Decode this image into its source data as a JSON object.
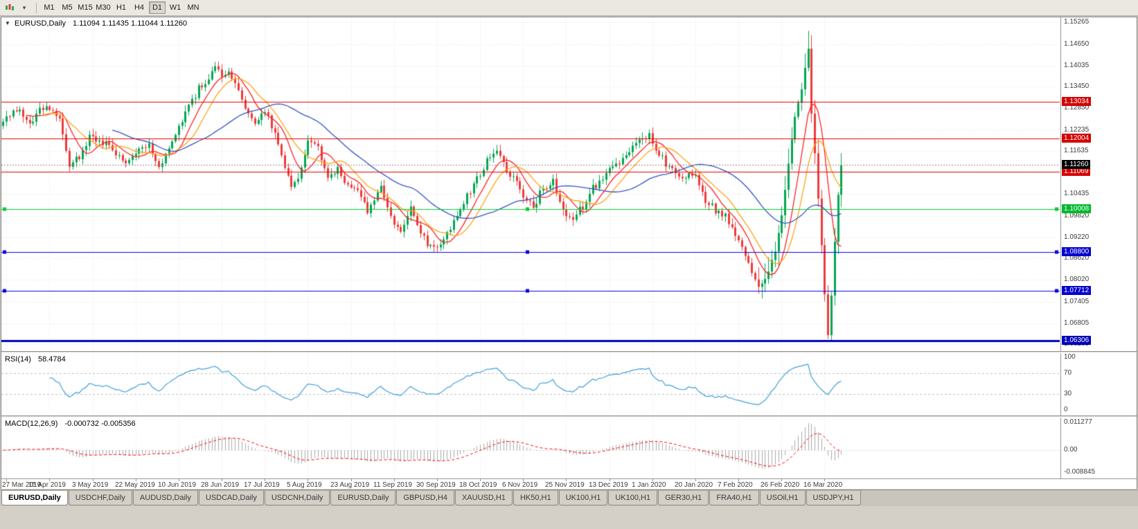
{
  "toolbar": {
    "timeframes": [
      "M1",
      "M5",
      "M15",
      "M30",
      "H1",
      "H4",
      "D1",
      "W1",
      "MN"
    ],
    "active_timeframe": "D1"
  },
  "chart_data": {
    "type": "candlestick",
    "symbol_title": "EURUSD,Daily",
    "ohlc_readout": "1.11094 1.11435 1.11044 1.11260",
    "ohlc": {
      "open": "1.11094",
      "high": "1.11435",
      "low": "1.11044",
      "close": "1.11260"
    },
    "x_labels": [
      "27 Mar 2019",
      "15 Apr 2019",
      "3 May 2019",
      "22 May 2019",
      "10 Jun 2019",
      "28 Jun 2019",
      "17 Jul 2019",
      "5 Aug 2019",
      "23 Aug 2019",
      "11 Sep 2019",
      "30 Sep 2019",
      "18 Oct 2019",
      "6 Nov 2019",
      "25 Nov 2019",
      "13 Dec 2019",
      "1 Jan 2020",
      "20 Jan 2020",
      "7 Feb 2020",
      "26 Feb 2020",
      "16 Mar 2020"
    ],
    "bars_total": 254,
    "label_start_index": 1,
    "label_step": 13,
    "right_margin_fraction": 0.205,
    "price_range": {
      "min": 1.0602,
      "max": 1.154
    },
    "price_axis_ticks": [
      "1.15265",
      "1.14650",
      "1.14035",
      "1.13450",
      "1.12850",
      "1.12235",
      "1.11635",
      "1.11020",
      "1.10435",
      "1.09820",
      "1.09220",
      "1.08620",
      "1.08020",
      "1.07405",
      "1.06805",
      "1.06205"
    ],
    "close_keypoints": [
      [
        0,
        1.1255
      ],
      [
        4,
        1.1285
      ],
      [
        8,
        1.124
      ],
      [
        13,
        1.13
      ],
      [
        17,
        1.1255
      ],
      [
        20,
        1.112
      ],
      [
        23,
        1.115
      ],
      [
        26,
        1.12
      ],
      [
        30,
        1.119
      ],
      [
        34,
        1.116
      ],
      [
        38,
        1.113
      ],
      [
        40,
        1.1155
      ],
      [
        44,
        1.118
      ],
      [
        47,
        1.112
      ],
      [
        50,
        1.117
      ],
      [
        53,
        1.123
      ],
      [
        56,
        1.129
      ],
      [
        59,
        1.134
      ],
      [
        62,
        1.137
      ],
      [
        64,
        1.14
      ],
      [
        66,
        1.1375
      ],
      [
        68,
        1.139
      ],
      [
        70,
        1.136
      ],
      [
        73,
        1.128
      ],
      [
        76,
        1.125
      ],
      [
        79,
        1.127
      ],
      [
        82,
        1.122
      ],
      [
        85,
        1.112
      ],
      [
        87,
        1.1065
      ],
      [
        90,
        1.111
      ],
      [
        92,
        1.1195
      ],
      [
        95,
        1.117
      ],
      [
        98,
        1.109
      ],
      [
        101,
        1.112
      ],
      [
        103,
        1.108
      ],
      [
        105,
        1.106
      ],
      [
        108,
        1.104
      ],
      [
        110,
        1.099
      ],
      [
        112,
        1.103
      ],
      [
        114,
        1.107
      ],
      [
        116,
        1.1
      ],
      [
        118,
        1.096
      ],
      [
        120,
        1.093
      ],
      [
        123,
        1.1005
      ],
      [
        125,
        1.095
      ],
      [
        128,
        1.09
      ],
      [
        131,
        1.089
      ],
      [
        134,
        1.093
      ],
      [
        137,
        1.098
      ],
      [
        140,
        1.104
      ],
      [
        142,
        1.107
      ],
      [
        144,
        1.11
      ],
      [
        147,
        1.115
      ],
      [
        150,
        1.116
      ],
      [
        152,
        1.111
      ],
      [
        155,
        1.107
      ],
      [
        158,
        1.103
      ],
      [
        160,
        1.101
      ],
      [
        163,
        1.106
      ],
      [
        166,
        1.108
      ],
      [
        168,
        1.102
      ],
      [
        170,
        1.099
      ],
      [
        172,
        1.098
      ],
      [
        175,
        1.101
      ],
      [
        178,
        1.106
      ],
      [
        180,
        1.108
      ],
      [
        183,
        1.111
      ],
      [
        186,
        1.113
      ],
      [
        189,
        1.117
      ],
      [
        192,
        1.119
      ],
      [
        195,
        1.121
      ],
      [
        197,
        1.117
      ],
      [
        200,
        1.113
      ],
      [
        203,
        1.11
      ],
      [
        206,
        1.109
      ],
      [
        209,
        1.1095
      ],
      [
        212,
        1.102
      ],
      [
        215,
        1.1
      ],
      [
        218,
        1.098
      ],
      [
        221,
        1.093
      ],
      [
        224,
        1.087
      ],
      [
        227,
        1.08
      ],
      [
        229,
        1.0785
      ],
      [
        231,
        1.083
      ],
      [
        233,
        1.088
      ],
      [
        235,
        1.0985
      ],
      [
        237,
        1.113
      ],
      [
        239,
        1.126
      ],
      [
        241,
        1.134
      ],
      [
        242,
        1.14
      ],
      [
        243,
        1.145
      ],
      [
        244,
        1.127
      ],
      [
        245,
        1.116
      ],
      [
        246,
        1.103
      ],
      [
        247,
        1.09
      ],
      [
        248,
        1.076
      ],
      [
        249,
        1.0645
      ],
      [
        250,
        1.076
      ],
      [
        251,
        1.091
      ],
      [
        252,
        1.104
      ],
      [
        253,
        1.1126
      ]
    ],
    "noise_amplitude": 0.0011,
    "wick_overrides": [
      [
        64,
        "high",
        1.1415
      ],
      [
        243,
        "high",
        1.1502
      ],
      [
        249,
        "low",
        1.0636
      ]
    ],
    "candle_up_color": "#00a651",
    "candle_down_color": "#ef3a3a",
    "moving_averages": [
      {
        "period": 8,
        "color": "#ff2020"
      },
      {
        "period": 13,
        "color": "#ffa216"
      },
      {
        "period": 34,
        "color": "#3353c5"
      }
    ],
    "levels": [
      {
        "price": 1.13034,
        "label": "1.13034",
        "color": "#e30000",
        "badge_bg": "#d40000",
        "width": 1
      },
      {
        "price": 1.12004,
        "label": "1.12004",
        "color": "#e30000",
        "badge_bg": "#d40000",
        "width": 1
      },
      {
        "price": 1.11069,
        "label": "1.11069",
        "color": "#e30000",
        "badge_bg": "#d40000",
        "width": 1
      },
      {
        "price": 1.1126,
        "label": "1.11260",
        "color": "#8a8a8a",
        "badge_bg": "#000000",
        "width": 1,
        "dashed": true,
        "z": 7
      },
      {
        "price": 1.10008,
        "label": "1.10008",
        "color": "#00cc33",
        "badge_bg": "#00b82e",
        "width": 1,
        "handles": true
      },
      {
        "price": 1.088,
        "label": "1.08800",
        "color": "#0000e6",
        "badge_bg": "#0000d0",
        "width": 1,
        "handles": true
      },
      {
        "price": 1.07712,
        "label": "1.07712",
        "color": "#0000e6",
        "badge_bg": "#0000d0",
        "width": 1,
        "handles": true
      },
      {
        "price": 1.06306,
        "label": "1.06306",
        "color": "#0000b8",
        "badge_bg": "#0000b8",
        "width": 3
      }
    ],
    "indicators": {
      "rsi": {
        "label": "RSI(14)",
        "value": "58.4784",
        "period": 14,
        "line_color": "#3d9fd8",
        "levels": [
          70,
          30
        ],
        "axis_ticks": [
          "100",
          "70",
          "30",
          "0"
        ]
      },
      "macd": {
        "label": "MACD(12,26,9)",
        "values": "-0.000732 -0.005356",
        "fast": 12,
        "slow": 26,
        "signal": 9,
        "hist_color": "#a8a8a8",
        "signal_color": "#ff0000",
        "range": {
          "min": -0.0095,
          "max": 0.0118
        },
        "axis_ticks": [
          "0.011277",
          "0.00",
          "-0.008845"
        ]
      }
    }
  },
  "tabs": [
    "EURUSD,Daily",
    "USDCHF,Daily",
    "AUDUSD,Daily",
    "USDCAD,Daily",
    "USDCNH,Daily",
    "EURUSD,Daily",
    "GBPUSD,H4",
    "XAUUSD,H1",
    "HK50,H1",
    "UK100,H1",
    "UK100,H1",
    "GER30,H1",
    "FRA40,H1",
    "USOil,H1",
    "USDJPY,H1"
  ],
  "active_tab_index": 0
}
